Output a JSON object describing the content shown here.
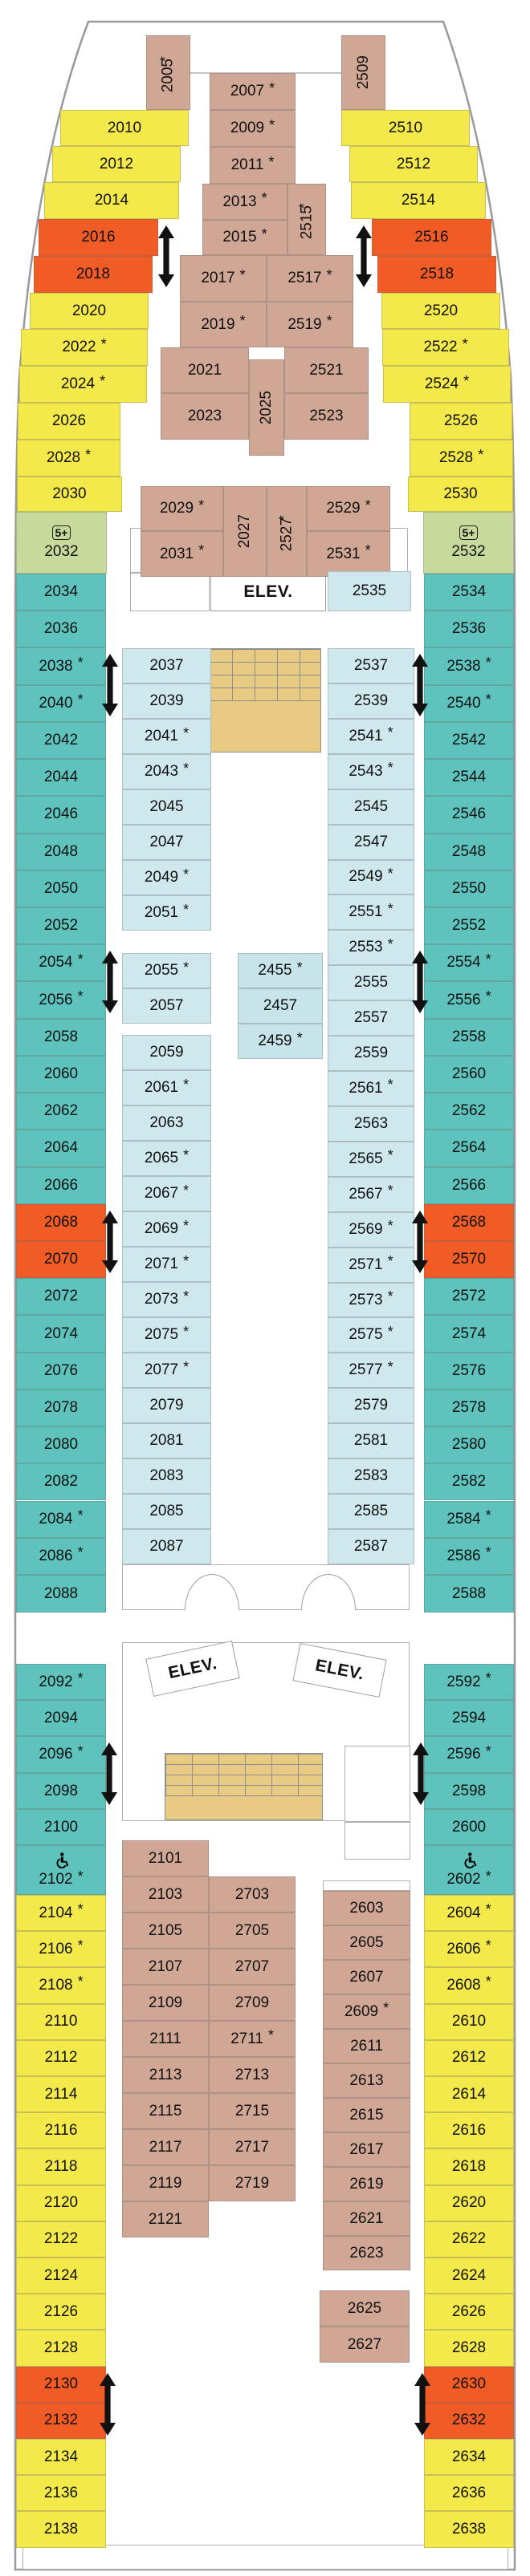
{
  "colors": {
    "yellow": "#f3e94a",
    "orange": "#f15b25",
    "teal": "#5fc3bd",
    "light_blue": "#cfe8ee",
    "center_blue": "#c6e4ea",
    "tan": "#d0a695",
    "green": "#c7da9c",
    "stairs_tan": "#e9ca83",
    "arrow_black": "#111111",
    "hull_gray": "#9a9a9a"
  },
  "labels": {
    "elevator": "ELEV.",
    "suite_plus": "5+"
  },
  "elevators": [
    {
      "label": "ELEV."
    },
    {
      "label": "ELEV."
    },
    {
      "label": "ELEV."
    }
  ],
  "cabin_groups": {
    "bow_left": [
      {
        "n": "2010",
        "c": "y"
      },
      {
        "n": "2012",
        "c": "y"
      },
      {
        "n": "2014",
        "c": "y"
      },
      {
        "n": "2016",
        "c": "o"
      },
      {
        "n": "2018",
        "c": "o"
      },
      {
        "n": "2020",
        "c": "y"
      },
      {
        "n": "2022",
        "c": "y",
        "s": true
      },
      {
        "n": "2024",
        "c": "y",
        "s": true
      },
      {
        "n": "2026",
        "c": "y"
      },
      {
        "n": "2028",
        "c": "y",
        "s": true
      },
      {
        "n": "2030",
        "c": "y"
      }
    ],
    "bow_right": [
      {
        "n": "2510",
        "c": "y"
      },
      {
        "n": "2512",
        "c": "y"
      },
      {
        "n": "2514",
        "c": "y"
      },
      {
        "n": "2516",
        "c": "o"
      },
      {
        "n": "2518",
        "c": "o"
      },
      {
        "n": "2520",
        "c": "y"
      },
      {
        "n": "2522",
        "c": "y",
        "s": true
      },
      {
        "n": "2524",
        "c": "y",
        "s": true
      },
      {
        "n": "2526",
        "c": "y"
      },
      {
        "n": "2528",
        "c": "y",
        "s": true
      },
      {
        "n": "2530",
        "c": "y"
      }
    ],
    "bow_center": [
      {
        "n": "2005",
        "c": "br",
        "v": true,
        "s": true
      },
      {
        "n": "2509",
        "c": "br",
        "v": true
      },
      {
        "n": "2007",
        "c": "br",
        "s": true
      },
      {
        "n": "2009",
        "c": "br",
        "s": true
      },
      {
        "n": "2011",
        "c": "br",
        "s": true
      },
      {
        "n": "2013",
        "c": "br",
        "s": true
      },
      {
        "n": "2015",
        "c": "br",
        "s": true
      },
      {
        "n": "2515",
        "c": "br",
        "v": true,
        "s": true
      },
      {
        "n": "2017",
        "c": "br",
        "s": true
      },
      {
        "n": "2517",
        "c": "br",
        "s": true
      },
      {
        "n": "2019",
        "c": "br",
        "s": true
      },
      {
        "n": "2519",
        "c": "br",
        "s": true
      },
      {
        "n": "2021",
        "c": "br"
      },
      {
        "n": "2521",
        "c": "br"
      },
      {
        "n": "2023",
        "c": "br"
      },
      {
        "n": "2523",
        "c": "br"
      },
      {
        "n": "2025",
        "c": "br",
        "v": true
      },
      {
        "n": "2029",
        "c": "br",
        "s": true
      },
      {
        "n": "2031",
        "c": "br",
        "s": true
      },
      {
        "n": "2027",
        "c": "br",
        "v": true
      },
      {
        "n": "2527",
        "c": "br",
        "v": true,
        "s": true
      },
      {
        "n": "2529",
        "c": "br",
        "s": true
      },
      {
        "n": "2531",
        "c": "br",
        "s": true
      }
    ],
    "suites_green": [
      {
        "n": "2032",
        "c": "g",
        "sp": true
      },
      {
        "n": "2532",
        "c": "g",
        "sp": true
      }
    ],
    "teal_left": [
      {
        "n": "2034",
        "c": "t"
      },
      {
        "n": "2036",
        "c": "t"
      },
      {
        "n": "2038",
        "c": "t",
        "s": true
      },
      {
        "n": "2040",
        "c": "t",
        "s": true
      },
      {
        "n": "2042",
        "c": "t"
      },
      {
        "n": "2044",
        "c": "t"
      },
      {
        "n": "2046",
        "c": "t"
      },
      {
        "n": "2048",
        "c": "t"
      },
      {
        "n": "2050",
        "c": "t"
      },
      {
        "n": "2052",
        "c": "t"
      },
      {
        "n": "2054",
        "c": "t",
        "s": true
      },
      {
        "n": "2056",
        "c": "t",
        "s": true
      },
      {
        "n": "2058",
        "c": "t"
      },
      {
        "n": "2060",
        "c": "t"
      },
      {
        "n": "2062",
        "c": "t"
      },
      {
        "n": "2064",
        "c": "t"
      },
      {
        "n": "2066",
        "c": "t"
      },
      {
        "n": "2068",
        "c": "o"
      },
      {
        "n": "2070",
        "c": "o"
      },
      {
        "n": "2072",
        "c": "t"
      },
      {
        "n": "2074",
        "c": "t"
      },
      {
        "n": "2076",
        "c": "t"
      },
      {
        "n": "2078",
        "c": "t"
      },
      {
        "n": "2080",
        "c": "t"
      },
      {
        "n": "2082",
        "c": "t"
      },
      {
        "n": "2084",
        "c": "t",
        "s": true
      },
      {
        "n": "2086",
        "c": "t",
        "s": true
      },
      {
        "n": "2088",
        "c": "t"
      }
    ],
    "teal_right": [
      {
        "n": "2534",
        "c": "t"
      },
      {
        "n": "2536",
        "c": "t"
      },
      {
        "n": "2538",
        "c": "t",
        "s": true
      },
      {
        "n": "2540",
        "c": "t",
        "s": true
      },
      {
        "n": "2542",
        "c": "t"
      },
      {
        "n": "2544",
        "c": "t"
      },
      {
        "n": "2546",
        "c": "t"
      },
      {
        "n": "2548",
        "c": "t"
      },
      {
        "n": "2550",
        "c": "t"
      },
      {
        "n": "2552",
        "c": "t"
      },
      {
        "n": "2554",
        "c": "t",
        "s": true
      },
      {
        "n": "2556",
        "c": "t",
        "s": true
      },
      {
        "n": "2558",
        "c": "t"
      },
      {
        "n": "2560",
        "c": "t"
      },
      {
        "n": "2562",
        "c": "t"
      },
      {
        "n": "2564",
        "c": "t"
      },
      {
        "n": "2566",
        "c": "t"
      },
      {
        "n": "2568",
        "c": "o"
      },
      {
        "n": "2570",
        "c": "o"
      },
      {
        "n": "2572",
        "c": "t"
      },
      {
        "n": "2574",
        "c": "t"
      },
      {
        "n": "2576",
        "c": "t"
      },
      {
        "n": "2578",
        "c": "t"
      },
      {
        "n": "2580",
        "c": "t"
      },
      {
        "n": "2582",
        "c": "t"
      },
      {
        "n": "2584",
        "c": "t",
        "s": true
      },
      {
        "n": "2586",
        "c": "t",
        "s": true
      },
      {
        "n": "2588",
        "c": "t"
      }
    ],
    "inner_left": [
      {
        "n": "2037",
        "c": "b"
      },
      {
        "n": "2039",
        "c": "b"
      },
      {
        "n": "2041",
        "c": "b",
        "s": true
      },
      {
        "n": "2043",
        "c": "b",
        "s": true
      },
      {
        "n": "2045",
        "c": "b"
      },
      {
        "n": "2047",
        "c": "b"
      },
      {
        "n": "2049",
        "c": "b",
        "s": true
      },
      {
        "n": "2051",
        "c": "b",
        "s": true
      },
      {
        "n": "2055",
        "c": "b",
        "s": true
      },
      {
        "n": "2057",
        "c": "b"
      },
      {
        "n": "2059",
        "c": "b"
      },
      {
        "n": "2061",
        "c": "b",
        "s": true
      },
      {
        "n": "2063",
        "c": "b"
      },
      {
        "n": "2065",
        "c": "b",
        "s": true
      },
      {
        "n": "2067",
        "c": "b",
        "s": true
      },
      {
        "n": "2069",
        "c": "b",
        "s": true
      },
      {
        "n": "2071",
        "c": "b",
        "s": true
      },
      {
        "n": "2073",
        "c": "b",
        "s": true
      },
      {
        "n": "2075",
        "c": "b",
        "s": true
      },
      {
        "n": "2077",
        "c": "b",
        "s": true
      },
      {
        "n": "2079",
        "c": "b"
      },
      {
        "n": "2081",
        "c": "b"
      },
      {
        "n": "2083",
        "c": "b"
      },
      {
        "n": "2085",
        "c": "b"
      },
      {
        "n": "2087",
        "c": "b"
      }
    ],
    "inner_right": [
      {
        "n": "2537",
        "c": "b"
      },
      {
        "n": "2539",
        "c": "b"
      },
      {
        "n": "2541",
        "c": "b",
        "s": true
      },
      {
        "n": "2543",
        "c": "b",
        "s": true
      },
      {
        "n": "2545",
        "c": "b"
      },
      {
        "n": "2547",
        "c": "b"
      },
      {
        "n": "2549",
        "c": "b",
        "s": true
      },
      {
        "n": "2551",
        "c": "b",
        "s": true
      },
      {
        "n": "2553",
        "c": "b",
        "s": true
      },
      {
        "n": "2555",
        "c": "b"
      },
      {
        "n": "2557",
        "c": "b"
      },
      {
        "n": "2559",
        "c": "b"
      },
      {
        "n": "2561",
        "c": "b",
        "s": true
      },
      {
        "n": "2563",
        "c": "b"
      },
      {
        "n": "2565",
        "c": "b",
        "s": true
      },
      {
        "n": "2567",
        "c": "b",
        "s": true
      },
      {
        "n": "2569",
        "c": "b",
        "s": true
      },
      {
        "n": "2571",
        "c": "b",
        "s": true
      },
      {
        "n": "2573",
        "c": "b",
        "s": true
      },
      {
        "n": "2575",
        "c": "b",
        "s": true
      },
      {
        "n": "2577",
        "c": "b",
        "s": true
      },
      {
        "n": "2579",
        "c": "b"
      },
      {
        "n": "2581",
        "c": "b"
      },
      {
        "n": "2583",
        "c": "b"
      },
      {
        "n": "2585",
        "c": "b"
      },
      {
        "n": "2587",
        "c": "b"
      }
    ],
    "center_col": [
      {
        "n": "2455",
        "c": "cb",
        "s": true
      },
      {
        "n": "2457",
        "c": "cb"
      },
      {
        "n": "2459",
        "c": "cb",
        "s": true
      }
    ],
    "near_elev": [
      {
        "n": "2535",
        "c": "b"
      }
    ],
    "mid_teal_left": [
      {
        "n": "2092",
        "c": "t",
        "s": true
      },
      {
        "n": "2094",
        "c": "t"
      },
      {
        "n": "2096",
        "c": "t",
        "s": true
      },
      {
        "n": "2098",
        "c": "t"
      },
      {
        "n": "2100",
        "c": "t"
      },
      {
        "n": "2102",
        "c": "t",
        "s": true,
        "wc": true
      }
    ],
    "mid_teal_right": [
      {
        "n": "2592",
        "c": "t",
        "s": true
      },
      {
        "n": "2594",
        "c": "t"
      },
      {
        "n": "2596",
        "c": "t",
        "s": true
      },
      {
        "n": "2598",
        "c": "t"
      },
      {
        "n": "2600",
        "c": "t"
      },
      {
        "n": "2602",
        "c": "t",
        "s": true,
        "wc": true
      }
    ],
    "aft_outer_left": [
      {
        "n": "2104",
        "c": "y",
        "s": true
      },
      {
        "n": "2106",
        "c": "y",
        "s": true
      },
      {
        "n": "2108",
        "c": "y",
        "s": true
      },
      {
        "n": "2110",
        "c": "y"
      },
      {
        "n": "2112",
        "c": "y"
      },
      {
        "n": "2114",
        "c": "y"
      },
      {
        "n": "2116",
        "c": "y"
      },
      {
        "n": "2118",
        "c": "y"
      },
      {
        "n": "2120",
        "c": "y"
      },
      {
        "n": "2122",
        "c": "y"
      },
      {
        "n": "2124",
        "c": "y"
      },
      {
        "n": "2126",
        "c": "y"
      },
      {
        "n": "2128",
        "c": "y"
      },
      {
        "n": "2130",
        "c": "o"
      },
      {
        "n": "2132",
        "c": "o"
      },
      {
        "n": "2134",
        "c": "y"
      },
      {
        "n": "2136",
        "c": "y"
      },
      {
        "n": "2138",
        "c": "y"
      }
    ],
    "aft_outer_right": [
      {
        "n": "2604",
        "c": "y",
        "s": true
      },
      {
        "n": "2606",
        "c": "y",
        "s": true
      },
      {
        "n": "2608",
        "c": "y",
        "s": true
      },
      {
        "n": "2610",
        "c": "y"
      },
      {
        "n": "2612",
        "c": "y"
      },
      {
        "n": "2614",
        "c": "y"
      },
      {
        "n": "2616",
        "c": "y"
      },
      {
        "n": "2618",
        "c": "y"
      },
      {
        "n": "2620",
        "c": "y"
      },
      {
        "n": "2622",
        "c": "y"
      },
      {
        "n": "2624",
        "c": "y"
      },
      {
        "n": "2626",
        "c": "y"
      },
      {
        "n": "2628",
        "c": "y"
      },
      {
        "n": "2630",
        "c": "o"
      },
      {
        "n": "2632",
        "c": "o"
      },
      {
        "n": "2634",
        "c": "y"
      },
      {
        "n": "2636",
        "c": "y"
      },
      {
        "n": "2638",
        "c": "y"
      }
    ],
    "aft_tan_a": [
      {
        "n": "2101",
        "c": "br"
      },
      {
        "n": "2103",
        "c": "br"
      },
      {
        "n": "2105",
        "c": "br"
      },
      {
        "n": "2107",
        "c": "br"
      },
      {
        "n": "2109",
        "c": "br"
      },
      {
        "n": "2111",
        "c": "br"
      },
      {
        "n": "2113",
        "c": "br"
      },
      {
        "n": "2115",
        "c": "br"
      },
      {
        "n": "2117",
        "c": "br"
      },
      {
        "n": "2119",
        "c": "br"
      },
      {
        "n": "2121",
        "c": "br"
      }
    ],
    "aft_tan_b": [
      {
        "n": "2703",
        "c": "br"
      },
      {
        "n": "2705",
        "c": "br"
      },
      {
        "n": "2707",
        "c": "br"
      },
      {
        "n": "2709",
        "c": "br"
      },
      {
        "n": "2711",
        "c": "br",
        "s": true
      },
      {
        "n": "2713",
        "c": "br"
      },
      {
        "n": "2715",
        "c": "br"
      },
      {
        "n": "2717",
        "c": "br"
      },
      {
        "n": "2719",
        "c": "br"
      }
    ],
    "aft_tan_c": [
      {
        "n": "2603",
        "c": "br"
      },
      {
        "n": "2605",
        "c": "br"
      },
      {
        "n": "2607",
        "c": "br"
      },
      {
        "n": "2609",
        "c": "br",
        "s": true
      },
      {
        "n": "2611",
        "c": "br"
      },
      {
        "n": "2613",
        "c": "br"
      },
      {
        "n": "2615",
        "c": "br"
      },
      {
        "n": "2617",
        "c": "br"
      },
      {
        "n": "2619",
        "c": "br"
      },
      {
        "n": "2621",
        "c": "br"
      },
      {
        "n": "2623",
        "c": "br"
      }
    ],
    "aft_tan_d": [
      {
        "n": "2625",
        "c": "br"
      },
      {
        "n": "2627",
        "c": "br"
      }
    ]
  }
}
